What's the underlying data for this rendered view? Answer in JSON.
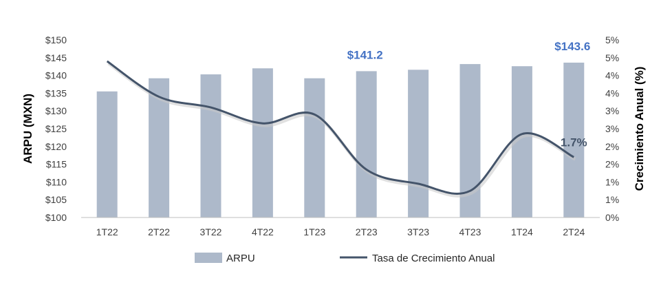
{
  "chart_data": {
    "type": "bar",
    "categories": [
      "1T22",
      "2T22",
      "3T22",
      "4T22",
      "1T23",
      "2T23",
      "3T23",
      "4T23",
      "1T24",
      "2T24"
    ],
    "ylabel": "ARPU (MXN)",
    "y2label": "Crecimiento Anual (%)",
    "ylim": [
      100,
      150
    ],
    "y2lim": [
      0,
      5
    ],
    "yticks": [
      "$100",
      "$105",
      "$110",
      "$115",
      "$120",
      "$125",
      "$130",
      "$135",
      "$140",
      "$145",
      "$150"
    ],
    "y2ticks": [
      "0%",
      "1%",
      "1%",
      "2%",
      "2%",
      "3%",
      "3%",
      "4%",
      "4%",
      "5%",
      "5%"
    ],
    "grid": false,
    "legend_position": "bottom",
    "series": [
      {
        "name": "ARPU",
        "type": "bar",
        "axis": "left",
        "color": "#adb9ca",
        "values": [
          135.5,
          139.2,
          140.3,
          142.0,
          139.2,
          141.2,
          141.6,
          143.2,
          142.6,
          143.6
        ]
      },
      {
        "name": "Tasa de Crecimiento Anual",
        "type": "line",
        "axis": "right",
        "smooth": true,
        "color": "#44546a",
        "values": [
          4.4,
          3.4,
          3.1,
          2.65,
          2.9,
          1.35,
          0.95,
          0.75,
          2.35,
          1.7
        ]
      }
    ],
    "annotations": [
      {
        "text": "$141.2",
        "category": "2T23",
        "color": "#4472c4"
      },
      {
        "text": "$143.6",
        "category": "2T24",
        "color": "#4472c4"
      },
      {
        "text": "1.7%",
        "category": "2T24",
        "color": "#44546a"
      }
    ]
  }
}
